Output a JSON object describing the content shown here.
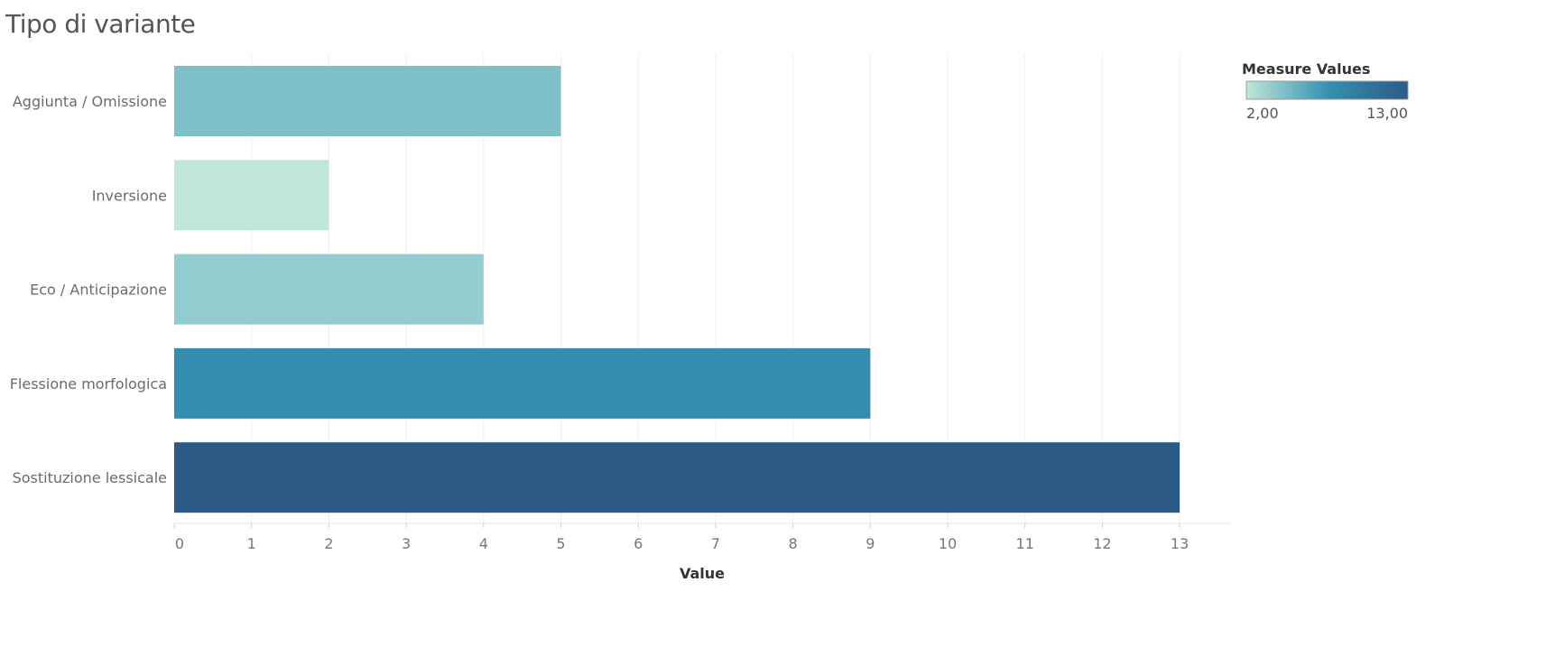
{
  "title": "Tipo di variante",
  "legend": {
    "title": "Measure Values",
    "min_label": "2,00",
    "max_label": "13,00",
    "min_value": 2,
    "max_value": 13,
    "gradient_colors": [
      "#c0e6da",
      "#3592b1",
      "#2c5a87"
    ]
  },
  "chart_data": {
    "type": "bar",
    "orientation": "horizontal",
    "categories": [
      "Aggiunta / Omissione",
      "Inversione",
      "Eco / Anticipazione",
      "Flessione morfologica",
      "Sostituzione lessicale"
    ],
    "values": [
      5,
      2,
      4,
      9,
      13
    ],
    "bar_colors": [
      "#7fc0c9",
      "#c0e6da",
      "#94cdcf",
      "#358daf",
      "#2c5a87"
    ],
    "xlabel": "Value",
    "xlim": [
      0,
      13.6
    ],
    "xticks": [
      0,
      1,
      2,
      3,
      4,
      5,
      6,
      7,
      8,
      9,
      10,
      11,
      12,
      13
    ],
    "grid": true
  }
}
